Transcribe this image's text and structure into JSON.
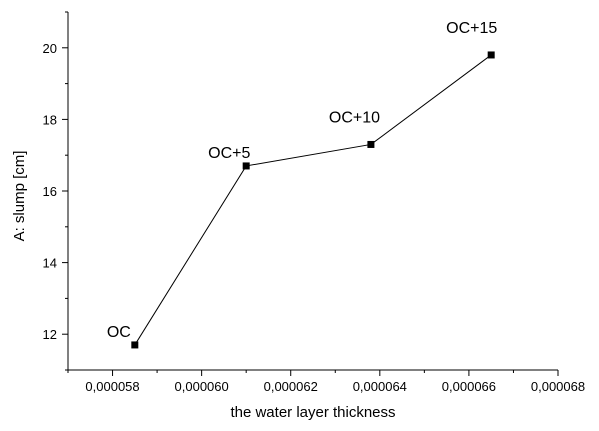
{
  "chart_data": {
    "type": "line",
    "title": "",
    "xlabel": "the water layer thickness",
    "ylabel": "A: slump [cm]",
    "xlim": [
      5.7e-05,
      6.8e-05
    ],
    "ylim": [
      11.0,
      21.0
    ],
    "x_ticks": [
      5.8e-05,
      6e-05,
      6.2e-05,
      6.4e-05,
      6.6e-05,
      6.8e-05
    ],
    "x_tick_labels": [
      "0,000058",
      "0,000060",
      "0,000062",
      "0,000064",
      "0,000066",
      "0,000068"
    ],
    "y_ticks": [
      12,
      14,
      16,
      18,
      20
    ],
    "y_tick_labels": [
      "12",
      "14",
      "16",
      "18",
      "20"
    ],
    "grid": false,
    "series": [
      {
        "x": [
          5.85e-05,
          6.1e-05,
          6.38e-05,
          6.65e-05
        ],
        "y": [
          11.7,
          16.7,
          17.3,
          19.8
        ],
        "point_labels": [
          "OC",
          "OC+5",
          "OC+10",
          "OC+15"
        ]
      }
    ]
  }
}
